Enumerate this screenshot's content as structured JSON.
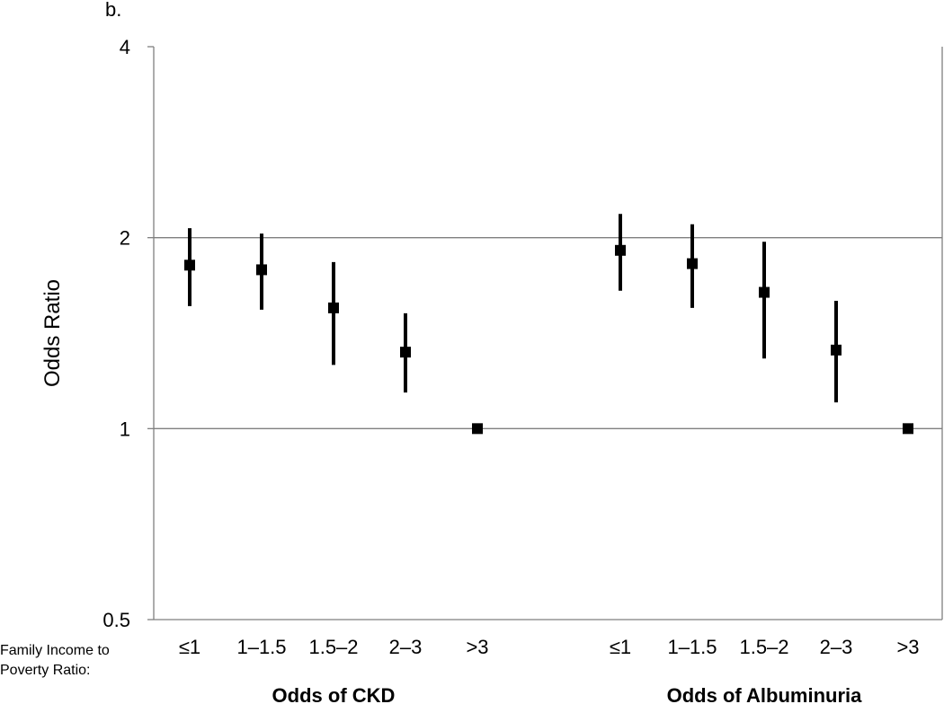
{
  "panel_label": "b.",
  "x_row_label": [
    "Family Income to",
    "Poverty Ratio:"
  ],
  "chart_data": {
    "type": "scatter",
    "title": "",
    "ylabel": "Odds Ratio",
    "xlabel": "",
    "yscale": "log2",
    "ylim": [
      0.5,
      4
    ],
    "yticks": [
      0.5,
      1,
      2,
      4
    ],
    "ytick_labels": [
      "0.5",
      "1",
      "2",
      "4"
    ],
    "grid": "horizontal at 1 and 2",
    "legend": "none",
    "groups": [
      {
        "name": "Odds of CKD",
        "points": [
          {
            "category": "≤1",
            "value": 1.81,
            "ci_low": 1.56,
            "ci_high": 2.07
          },
          {
            "category": "1–1.5",
            "value": 1.78,
            "ci_low": 1.54,
            "ci_high": 2.03
          },
          {
            "category": "1.5–2",
            "value": 1.55,
            "ci_low": 1.26,
            "ci_high": 1.83
          },
          {
            "category": "2–3",
            "value": 1.32,
            "ci_low": 1.14,
            "ci_high": 1.52
          },
          {
            "category": ">3",
            "value": 1.0,
            "ci_low": 1.0,
            "ci_high": 1.0
          }
        ]
      },
      {
        "name": "Odds of Albuminuria",
        "points": [
          {
            "category": "≤1",
            "value": 1.91,
            "ci_low": 1.65,
            "ci_high": 2.18
          },
          {
            "category": "1–1.5",
            "value": 1.82,
            "ci_low": 1.55,
            "ci_high": 2.1
          },
          {
            "category": "1.5–2",
            "value": 1.64,
            "ci_low": 1.29,
            "ci_high": 1.97
          },
          {
            "category": "2–3",
            "value": 1.33,
            "ci_low": 1.1,
            "ci_high": 1.59
          },
          {
            "category": ">3",
            "value": 1.0,
            "ci_low": 1.0,
            "ci_high": 1.0
          }
        ]
      }
    ]
  }
}
